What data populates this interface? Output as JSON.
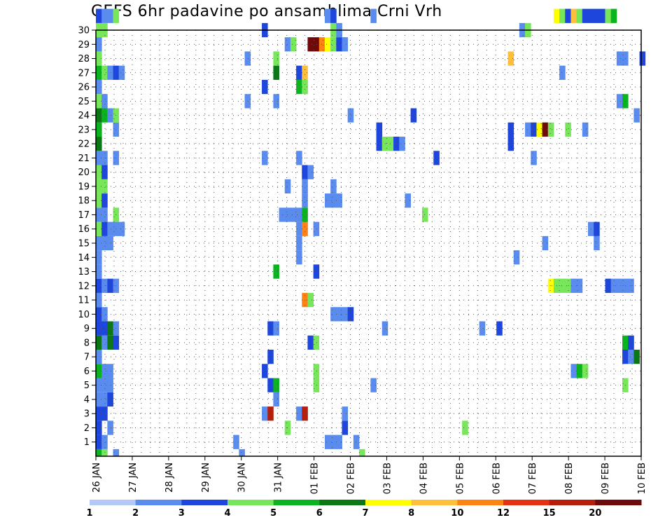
{
  "chart_data": {
    "type": "heatmap",
    "title": "GEFS 6hr padavine po ansamblima Crni Vrh",
    "xlabel": "",
    "ylabel": "",
    "y_ticks": [
      1,
      2,
      3,
      4,
      5,
      6,
      7,
      8,
      9,
      10,
      11,
      12,
      13,
      14,
      15,
      16,
      17,
      18,
      19,
      20,
      21,
      22,
      23,
      24,
      25,
      26,
      27,
      28,
      29,
      30
    ],
    "x_ticks": [
      "26 JAN",
      "27 JAN",
      "28 JAN",
      "29 JAN",
      "30 JAN",
      "31 JAN",
      "01 FEB",
      "02 FEB",
      "03 FEB",
      "04 FEB",
      "05 FEB",
      "06 FEB",
      "07 FEB",
      "08 FEB",
      "09 FEB",
      "10 FEB"
    ],
    "member_range": [
      0,
      30
    ],
    "grid": "dotted",
    "colorbar": {
      "labels": [
        "1",
        "2",
        "3",
        "4",
        "5",
        "6",
        "7",
        "8",
        "10",
        "12",
        "15",
        "20"
      ],
      "colors": [
        "#b4c8f5",
        "#5a8cf0",
        "#1e46dc",
        "#78e65a",
        "#0ab41e",
        "#0a7814",
        "#ffff00",
        "#ffbe3c",
        "#ff8214",
        "#e63214",
        "#b41e0a",
        "#6e0a0a"
      ]
    },
    "cells": [
      [
        0,
        0,
        4
      ],
      [
        0,
        1,
        3
      ],
      [
        0,
        3,
        1
      ],
      [
        0,
        25,
        1
      ],
      [
        0,
        46,
        3
      ],
      [
        1,
        0,
        2
      ],
      [
        1,
        1,
        1
      ],
      [
        1,
        24,
        1
      ],
      [
        1,
        40,
        1
      ],
      [
        1,
        41,
        1
      ],
      [
        1,
        42,
        1
      ],
      [
        1,
        45,
        1
      ],
      [
        2,
        0,
        2
      ],
      [
        2,
        2,
        1
      ],
      [
        2,
        33,
        3
      ],
      [
        2,
        43,
        2
      ],
      [
        2,
        64,
        3
      ],
      [
        3,
        0,
        2
      ],
      [
        3,
        1,
        2
      ],
      [
        3,
        29,
        1
      ],
      [
        3,
        30,
        10
      ],
      [
        3,
        35,
        1
      ],
      [
        3,
        36,
        10
      ],
      [
        3,
        43,
        1
      ],
      [
        4,
        0,
        1
      ],
      [
        4,
        1,
        1
      ],
      [
        4,
        2,
        2
      ],
      [
        4,
        31,
        1
      ],
      [
        5,
        0,
        1
      ],
      [
        5,
        1,
        1
      ],
      [
        5,
        2,
        1
      ],
      [
        5,
        30,
        2
      ],
      [
        5,
        31,
        4
      ],
      [
        5,
        38,
        3
      ],
      [
        5,
        48,
        1
      ],
      [
        5,
        92,
        3
      ],
      [
        6,
        0,
        4
      ],
      [
        6,
        1,
        1
      ],
      [
        6,
        2,
        1
      ],
      [
        6,
        29,
        2
      ],
      [
        6,
        38,
        3
      ],
      [
        6,
        83,
        1
      ],
      [
        6,
        84,
        4
      ],
      [
        6,
        85,
        3
      ],
      [
        7,
        0,
        1
      ],
      [
        7,
        30,
        2
      ],
      [
        7,
        92,
        2
      ],
      [
        7,
        93,
        1
      ],
      [
        7,
        94,
        5
      ],
      [
        8,
        0,
        5
      ],
      [
        8,
        1,
        1
      ],
      [
        8,
        2,
        5
      ],
      [
        8,
        3,
        2
      ],
      [
        8,
        37,
        2
      ],
      [
        8,
        38,
        3
      ],
      [
        8,
        92,
        4
      ],
      [
        8,
        93,
        2
      ],
      [
        9,
        0,
        2
      ],
      [
        9,
        1,
        2
      ],
      [
        9,
        2,
        5
      ],
      [
        9,
        3,
        1
      ],
      [
        9,
        30,
        2
      ],
      [
        9,
        31,
        1
      ],
      [
        9,
        50,
        1
      ],
      [
        9,
        67,
        1
      ],
      [
        9,
        70,
        2
      ],
      [
        10,
        0,
        2
      ],
      [
        10,
        1,
        1
      ],
      [
        10,
        41,
        1
      ],
      [
        10,
        42,
        1
      ],
      [
        10,
        43,
        1
      ],
      [
        10,
        44,
        2
      ],
      [
        11,
        0,
        1
      ],
      [
        11,
        36,
        8
      ],
      [
        11,
        37,
        3
      ],
      [
        12,
        0,
        2
      ],
      [
        12,
        1,
        1
      ],
      [
        12,
        2,
        2
      ],
      [
        12,
        3,
        1
      ],
      [
        12,
        79,
        6
      ],
      [
        12,
        80,
        3
      ],
      [
        12,
        81,
        3
      ],
      [
        12,
        82,
        3
      ],
      [
        12,
        83,
        1
      ],
      [
        12,
        84,
        1
      ],
      [
        12,
        89,
        2
      ],
      [
        12,
        90,
        1
      ],
      [
        12,
        91,
        1
      ],
      [
        12,
        92,
        1
      ],
      [
        12,
        93,
        1
      ],
      [
        13,
        0,
        1
      ],
      [
        13,
        31,
        4
      ],
      [
        13,
        38,
        2
      ],
      [
        14,
        0,
        1
      ],
      [
        14,
        35,
        1
      ],
      [
        14,
        73,
        1
      ],
      [
        15,
        0,
        1
      ],
      [
        15,
        1,
        1
      ],
      [
        15,
        2,
        1
      ],
      [
        15,
        35,
        1
      ],
      [
        15,
        78,
        1
      ],
      [
        15,
        87,
        1
      ],
      [
        16,
        0,
        3
      ],
      [
        16,
        1,
        2
      ],
      [
        16,
        2,
        1
      ],
      [
        16,
        3,
        1
      ],
      [
        16,
        4,
        1
      ],
      [
        16,
        35,
        1
      ],
      [
        16,
        36,
        8
      ],
      [
        16,
        38,
        1
      ],
      [
        16,
        86,
        1
      ],
      [
        16,
        87,
        2
      ],
      [
        17,
        0,
        1
      ],
      [
        17,
        1,
        1
      ],
      [
        17,
        3,
        3
      ],
      [
        17,
        32,
        1
      ],
      [
        17,
        33,
        1
      ],
      [
        17,
        34,
        1
      ],
      [
        17,
        35,
        1
      ],
      [
        17,
        36,
        4
      ],
      [
        17,
        57,
        3
      ],
      [
        18,
        0,
        3
      ],
      [
        18,
        1,
        2
      ],
      [
        18,
        36,
        1
      ],
      [
        18,
        40,
        1
      ],
      [
        18,
        41,
        1
      ],
      [
        18,
        42,
        1
      ],
      [
        18,
        54,
        1
      ],
      [
        19,
        0,
        3
      ],
      [
        19,
        1,
        3
      ],
      [
        19,
        33,
        1
      ],
      [
        19,
        36,
        1
      ],
      [
        19,
        41,
        1
      ],
      [
        20,
        0,
        3
      ],
      [
        20,
        1,
        2
      ],
      [
        20,
        36,
        2
      ],
      [
        20,
        37,
        1
      ],
      [
        21,
        0,
        1
      ],
      [
        21,
        1,
        1
      ],
      [
        21,
        3,
        1
      ],
      [
        21,
        29,
        1
      ],
      [
        21,
        35,
        1
      ],
      [
        21,
        59,
        2
      ],
      [
        21,
        76,
        1
      ],
      [
        22,
        0,
        5
      ],
      [
        22,
        49,
        2
      ],
      [
        22,
        50,
        3
      ],
      [
        22,
        51,
        3
      ],
      [
        22,
        52,
        2
      ],
      [
        22,
        53,
        1
      ],
      [
        22,
        72,
        2
      ],
      [
        23,
        0,
        4
      ],
      [
        23,
        3,
        1
      ],
      [
        23,
        49,
        2
      ],
      [
        23,
        72,
        2
      ],
      [
        23,
        75,
        1
      ],
      [
        23,
        76,
        2
      ],
      [
        23,
        77,
        6
      ],
      [
        23,
        78,
        11
      ],
      [
        23,
        79,
        3
      ],
      [
        23,
        82,
        3
      ],
      [
        23,
        85,
        1
      ],
      [
        24,
        0,
        5
      ],
      [
        24,
        1,
        4
      ],
      [
        24,
        2,
        1
      ],
      [
        24,
        3,
        3
      ],
      [
        24,
        44,
        1
      ],
      [
        24,
        55,
        2
      ],
      [
        24,
        94,
        1
      ],
      [
        25,
        0,
        3
      ],
      [
        25,
        1,
        1
      ],
      [
        25,
        26,
        1
      ],
      [
        25,
        31,
        1
      ],
      [
        25,
        91,
        1
      ],
      [
        25,
        92,
        4
      ],
      [
        26,
        0,
        1
      ],
      [
        26,
        29,
        2
      ],
      [
        26,
        35,
        4
      ],
      [
        26,
        36,
        3
      ],
      [
        27,
        0,
        4
      ],
      [
        27,
        1,
        3
      ],
      [
        27,
        2,
        1
      ],
      [
        27,
        3,
        2
      ],
      [
        27,
        4,
        1
      ],
      [
        27,
        31,
        5
      ],
      [
        27,
        35,
        2
      ],
      [
        27,
        36,
        7
      ],
      [
        27,
        81,
        1
      ],
      [
        28,
        0,
        3
      ],
      [
        28,
        31,
        3
      ],
      [
        28,
        26,
        1
      ],
      [
        28,
        72,
        7
      ],
      [
        28,
        91,
        1
      ],
      [
        28,
        92,
        1
      ],
      [
        28,
        95,
        2
      ],
      [
        29,
        0,
        1
      ],
      [
        29,
        33,
        1
      ],
      [
        29,
        34,
        3
      ],
      [
        29,
        37,
        11
      ],
      [
        29,
        38,
        11
      ],
      [
        29,
        39,
        8
      ],
      [
        29,
        40,
        6
      ],
      [
        29,
        41,
        3
      ],
      [
        29,
        42,
        2
      ],
      [
        29,
        43,
        1
      ],
      [
        30,
        0,
        3
      ],
      [
        30,
        1,
        3
      ],
      [
        30,
        29,
        2
      ],
      [
        30,
        41,
        3
      ],
      [
        30,
        42,
        1
      ],
      [
        30,
        74,
        1
      ],
      [
        30,
        75,
        3
      ],
      [
        31,
        0,
        2
      ],
      [
        31,
        1,
        1
      ],
      [
        31,
        2,
        1
      ],
      [
        31,
        3,
        3
      ],
      [
        31,
        40,
        1
      ],
      [
        31,
        41,
        2
      ],
      [
        31,
        48,
        1
      ],
      [
        31,
        80,
        6
      ],
      [
        31,
        81,
        3
      ],
      [
        31,
        82,
        2
      ],
      [
        31,
        83,
        7
      ],
      [
        31,
        84,
        3
      ],
      [
        31,
        85,
        2
      ],
      [
        31,
        86,
        2
      ],
      [
        31,
        87,
        2
      ],
      [
        31,
        88,
        2
      ],
      [
        31,
        89,
        3
      ],
      [
        31,
        90,
        4
      ]
    ]
  }
}
